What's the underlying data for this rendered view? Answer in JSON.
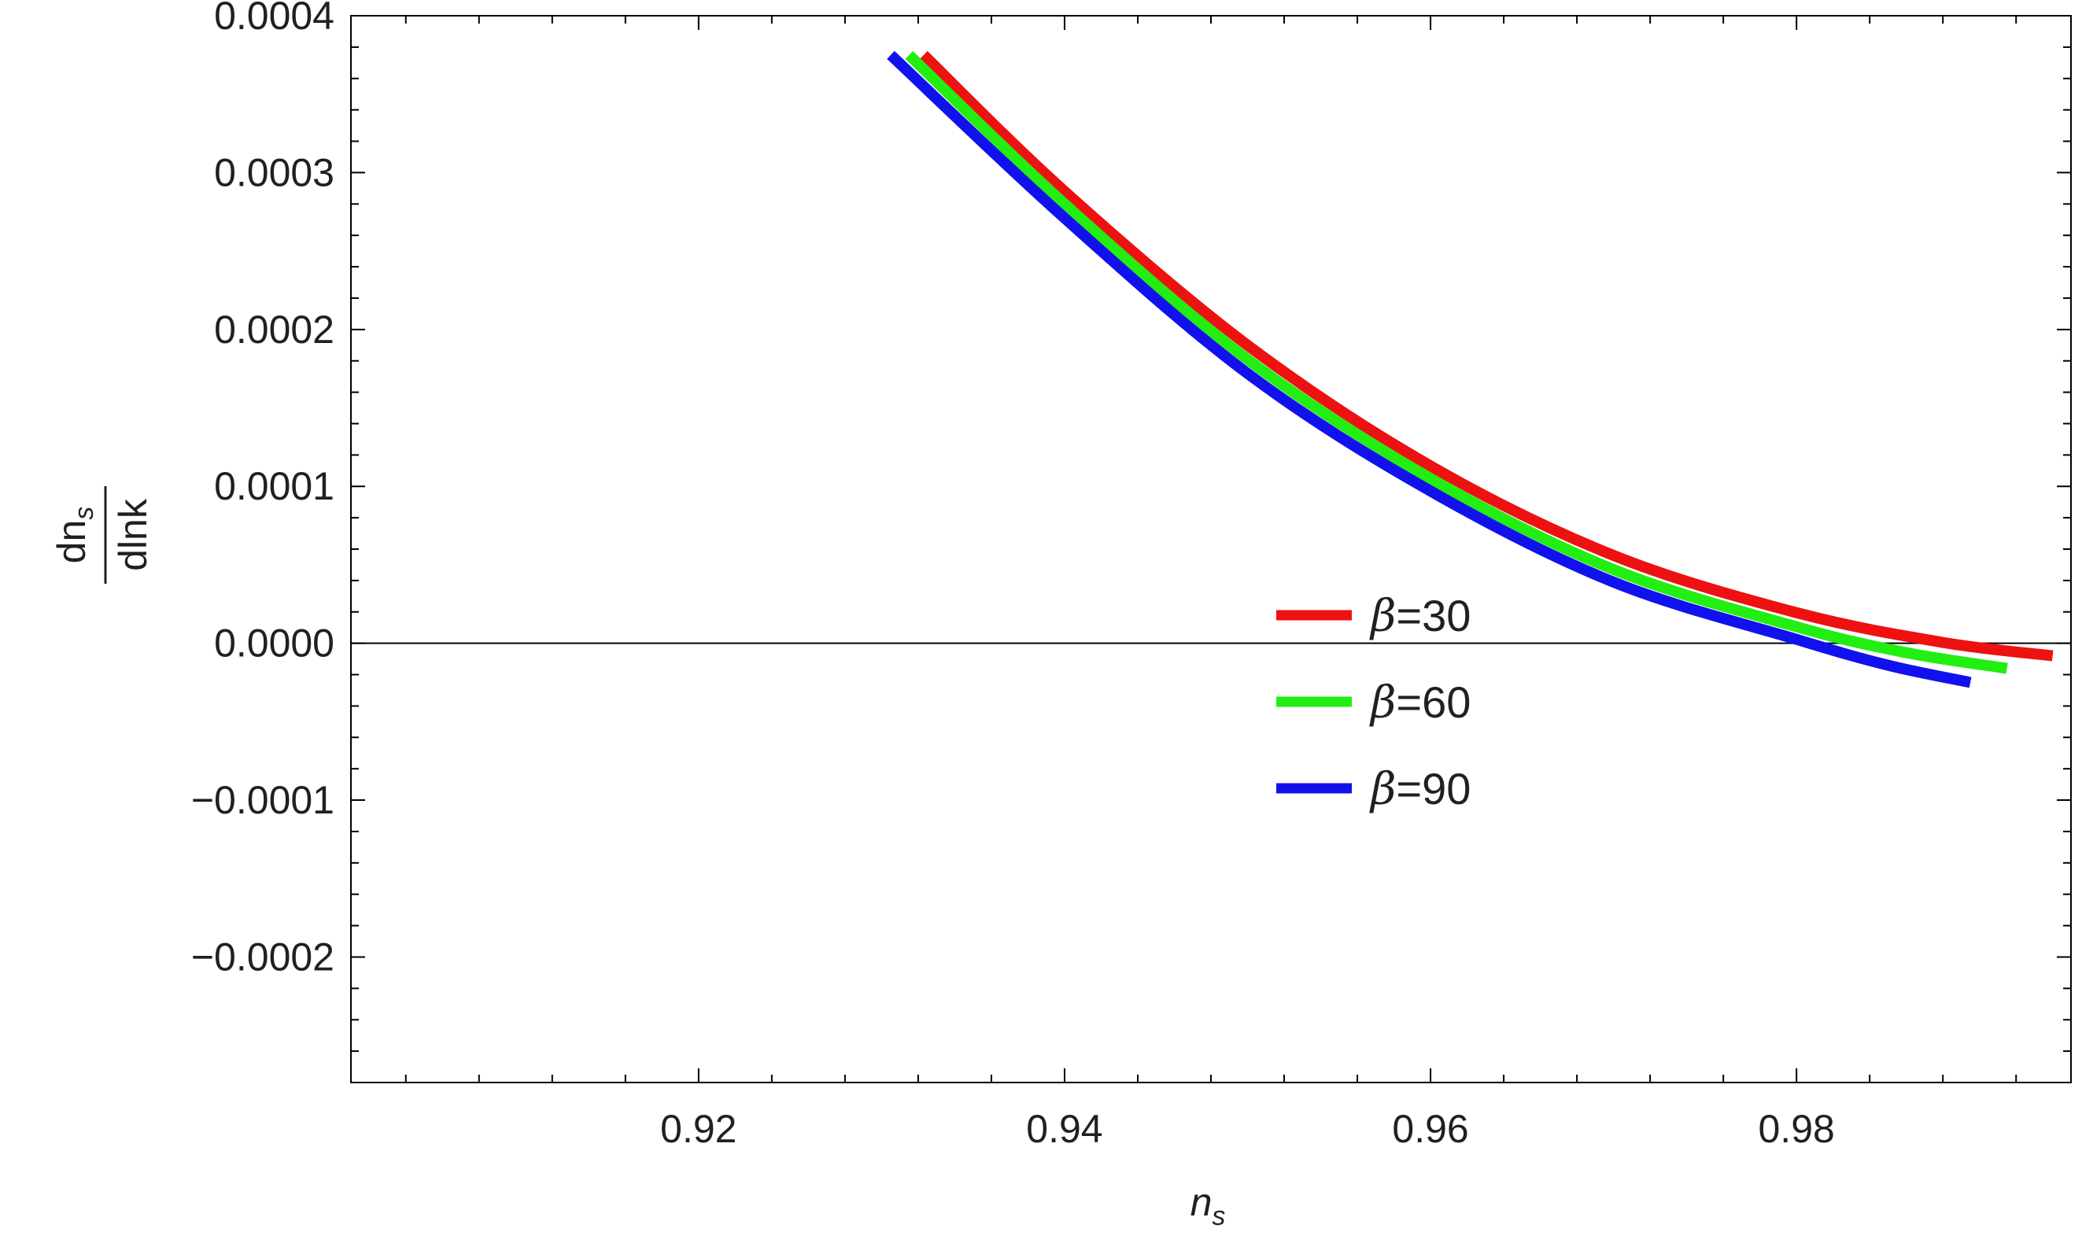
{
  "chart_data": {
    "type": "line",
    "title": "",
    "xlabel": {
      "main": "n",
      "sub": "s"
    },
    "ylabel": {
      "numerator_main": "dn",
      "numerator_sub": "s",
      "denominator": "dlnk"
    },
    "xlim": [
      0.901,
      0.995
    ],
    "ylim": [
      -0.00028,
      0.0004
    ],
    "xticks": [
      {
        "value": 0.92,
        "label": "0.92"
      },
      {
        "value": 0.94,
        "label": "0.94"
      },
      {
        "value": 0.96,
        "label": "0.96"
      },
      {
        "value": 0.98,
        "label": "0.98"
      }
    ],
    "yticks": [
      {
        "value": 0.0004,
        "label": "0.0004"
      },
      {
        "value": 0.0003,
        "label": "0.0003"
      },
      {
        "value": 0.0002,
        "label": "0.0002"
      },
      {
        "value": 0.0001,
        "label": "0.0001"
      },
      {
        "value": 0.0,
        "label": "0.0000"
      },
      {
        "value": -0.0001,
        "label": "−0.0001"
      },
      {
        "value": -0.0002,
        "label": "−0.0002"
      }
    ],
    "zero_line": true,
    "grid": false,
    "legend_position": "center-right",
    "series": [
      {
        "name": "β=30",
        "name_symbol": "β",
        "name_value": "=30",
        "color": "#ee1111",
        "x": [
          0.9323,
          0.94,
          0.95,
          0.96,
          0.97,
          0.98,
          0.988,
          0.994
        ],
        "y": [
          0.000375,
          0.000288,
          0.00019,
          0.000113,
          5.6e-05,
          1.95e-05,
          5e-07,
          -8e-06
        ]
      },
      {
        "name": "β=60",
        "name_symbol": "β",
        "name_value": "=60",
        "color": "#22ee11",
        "x": [
          0.9315,
          0.94,
          0.95,
          0.96,
          0.97,
          0.98,
          0.986,
          0.9915
        ],
        "y": [
          0.000375,
          0.00028,
          0.000181,
          0.000105,
          4.7e-05,
          1.05e-05,
          -6e-06,
          -1.6e-05
        ]
      },
      {
        "name": "β=90",
        "name_symbol": "β",
        "name_value": "=90",
        "color": "#1111ee",
        "x": [
          0.9305,
          0.94,
          0.95,
          0.96,
          0.97,
          0.98,
          0.985,
          0.9895
        ],
        "y": [
          0.000375,
          0.000271,
          0.000172,
          9.7e-05,
          3.9e-05,
          2.5e-06,
          -1.4e-05,
          -2.5e-05
        ]
      }
    ]
  }
}
